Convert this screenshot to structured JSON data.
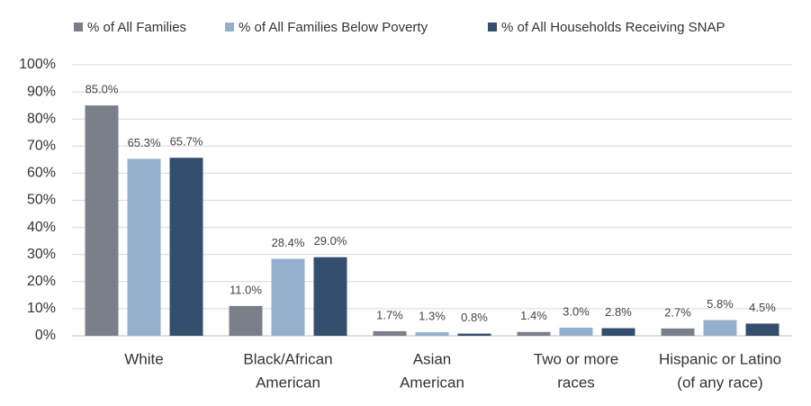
{
  "chart_data": {
    "type": "bar",
    "categories": [
      [
        "White"
      ],
      [
        "Black/African",
        "American"
      ],
      [
        "Asian",
        "American"
      ],
      [
        "Two or more",
        "races"
      ],
      [
        "Hispanic or Latino",
        "(of any race)"
      ]
    ],
    "series": [
      {
        "name": "% of All Families",
        "color": "#7a7f89",
        "values": [
          85.0,
          11.0,
          1.7,
          1.4,
          2.7
        ],
        "value_labels": [
          "85.0%",
          "11.0%",
          "1.7%",
          "1.4%",
          "2.7%"
        ]
      },
      {
        "name": "% of All Families Below Poverty",
        "color": "#95b0cc",
        "values": [
          65.3,
          28.4,
          1.3,
          3.0,
          5.8
        ],
        "value_labels": [
          "65.3%",
          "28.4%",
          "1.3%",
          "3.0%",
          "5.8%"
        ]
      },
      {
        "name": "% of All Households Receiving SNAP",
        "color": "#344e6e",
        "values": [
          65.7,
          29.0,
          0.8,
          2.8,
          4.5
        ],
        "value_labels": [
          "65.7%",
          "29.0%",
          "0.8%",
          "2.8%",
          "4.5%"
        ]
      }
    ],
    "ylim": [
      0,
      100
    ],
    "yticks": [
      {
        "value": 0,
        "label": "0%"
      },
      {
        "value": 10,
        "label": "10%"
      },
      {
        "value": 20,
        "label": "20%"
      },
      {
        "value": 30,
        "label": "30%"
      },
      {
        "value": 40,
        "label": "40%"
      },
      {
        "value": 50,
        "label": "50%"
      },
      {
        "value": 60,
        "label": "60%"
      },
      {
        "value": 70,
        "label": "70%"
      },
      {
        "value": 80,
        "label": "80%"
      },
      {
        "value": 90,
        "label": "90%"
      },
      {
        "value": 100,
        "label": "100%"
      }
    ],
    "grid": true,
    "legend": "top"
  }
}
